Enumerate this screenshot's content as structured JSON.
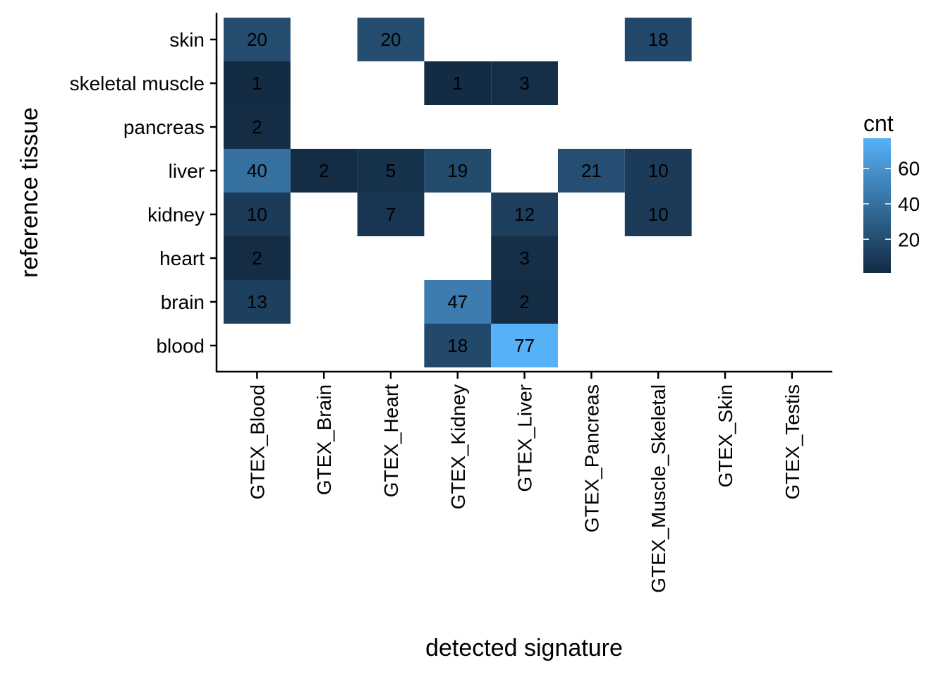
{
  "chart_data": {
    "type": "heatmap",
    "xlabel": "detected signature",
    "ylabel": "reference tissue",
    "x_categories": [
      "GTEX_Blood",
      "GTEX_Brain",
      "GTEX_Heart",
      "GTEX_Kidney",
      "GTEX_Liver",
      "GTEX_Pancreas",
      "GTEX_Muscle_Skeletal",
      "GTEX_Skin",
      "GTEX_Testis"
    ],
    "y_categories": [
      "skin",
      "skeletal muscle",
      "pancreas",
      "liver",
      "kidney",
      "heart",
      "brain",
      "blood"
    ],
    "cells": [
      {
        "x": "GTEX_Blood",
        "y": "skin",
        "value": 20
      },
      {
        "x": "GTEX_Heart",
        "y": "skin",
        "value": 20
      },
      {
        "x": "GTEX_Muscle_Skeletal",
        "y": "skin",
        "value": 18
      },
      {
        "x": "GTEX_Blood",
        "y": "skeletal muscle",
        "value": 1
      },
      {
        "x": "GTEX_Kidney",
        "y": "skeletal muscle",
        "value": 1
      },
      {
        "x": "GTEX_Liver",
        "y": "skeletal muscle",
        "value": 3
      },
      {
        "x": "GTEX_Blood",
        "y": "pancreas",
        "value": 2
      },
      {
        "x": "GTEX_Blood",
        "y": "liver",
        "value": 40
      },
      {
        "x": "GTEX_Brain",
        "y": "liver",
        "value": 2
      },
      {
        "x": "GTEX_Heart",
        "y": "liver",
        "value": 5
      },
      {
        "x": "GTEX_Kidney",
        "y": "liver",
        "value": 19
      },
      {
        "x": "GTEX_Pancreas",
        "y": "liver",
        "value": 21
      },
      {
        "x": "GTEX_Muscle_Skeletal",
        "y": "liver",
        "value": 10
      },
      {
        "x": "GTEX_Blood",
        "y": "kidney",
        "value": 10
      },
      {
        "x": "GTEX_Heart",
        "y": "kidney",
        "value": 7
      },
      {
        "x": "GTEX_Liver",
        "y": "kidney",
        "value": 12
      },
      {
        "x": "GTEX_Muscle_Skeletal",
        "y": "kidney",
        "value": 10
      },
      {
        "x": "GTEX_Blood",
        "y": "heart",
        "value": 2
      },
      {
        "x": "GTEX_Liver",
        "y": "heart",
        "value": 3
      },
      {
        "x": "GTEX_Blood",
        "y": "brain",
        "value": 13
      },
      {
        "x": "GTEX_Kidney",
        "y": "brain",
        "value": 47
      },
      {
        "x": "GTEX_Liver",
        "y": "brain",
        "value": 2
      },
      {
        "x": "GTEX_Kidney",
        "y": "blood",
        "value": 18
      },
      {
        "x": "GTEX_Liver",
        "y": "blood",
        "value": 77
      }
    ],
    "legend": {
      "title": "cnt",
      "placement": "right",
      "ticks": [
        20,
        40,
        60
      ],
      "range": [
        1,
        77
      ],
      "color_low": "#132B43",
      "color_high": "#56B1F7"
    },
    "grid": false
  }
}
